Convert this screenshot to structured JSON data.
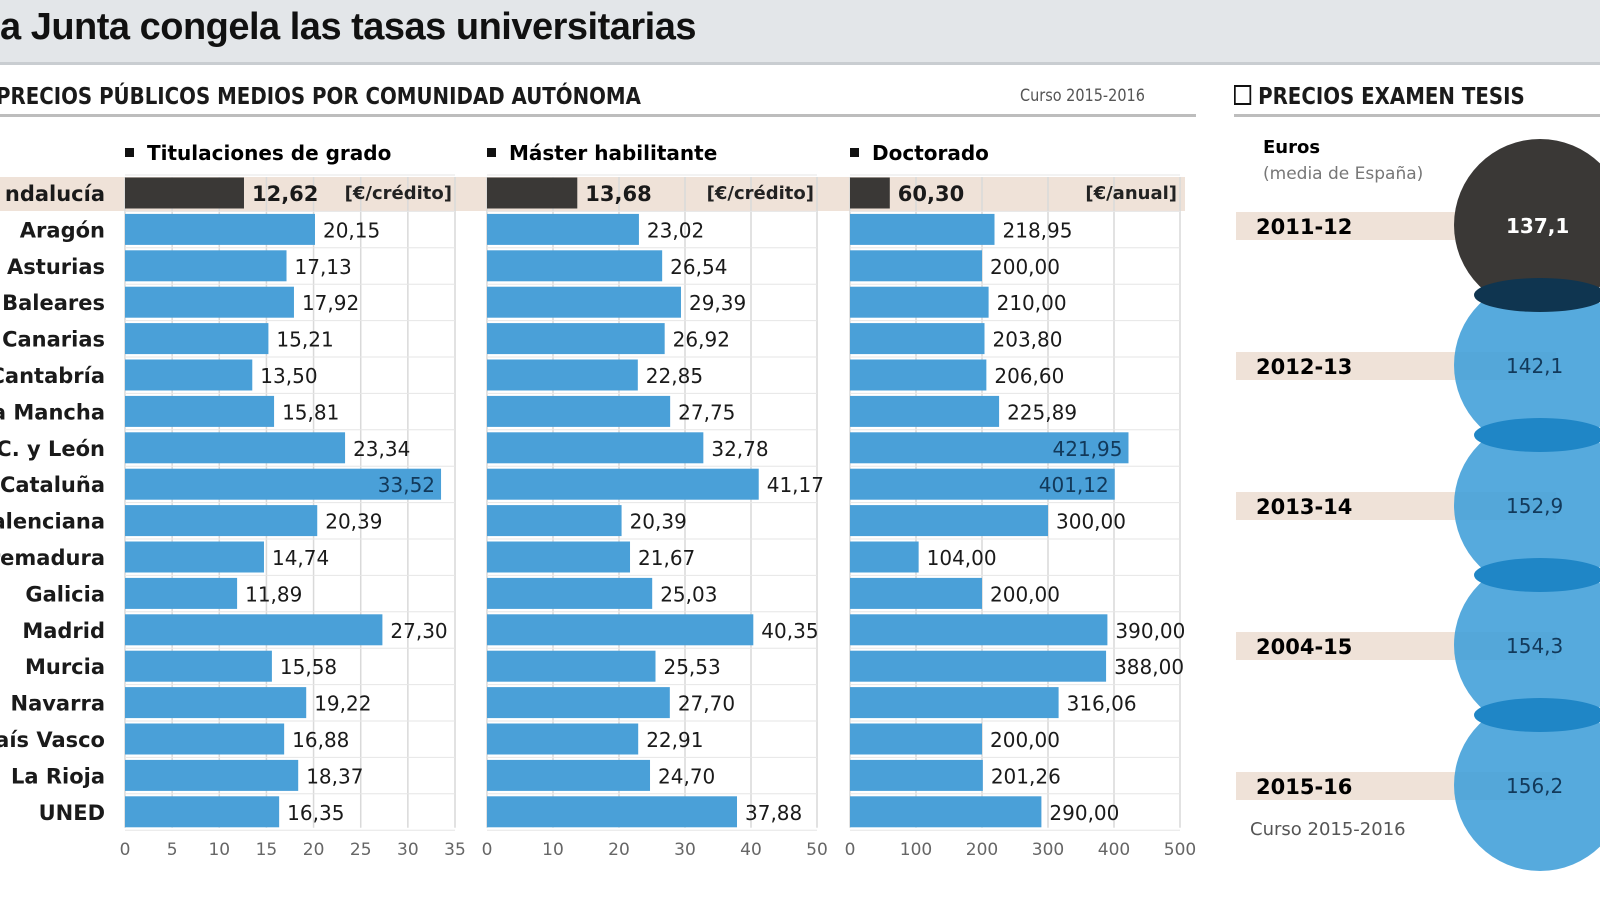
{
  "header": {
    "title": "a Junta congela las tasas universitarias"
  },
  "left_section": {
    "title": "PRECIOS PÚBLICOS MEDIOS POR COMUNIDAD AUTÓNOMA",
    "course": "Curso 2015-2016"
  },
  "right_section": {
    "title": "PRECIOS EXAMEN TESIS"
  },
  "colors": {
    "bar": "#4aa0d8",
    "highlight_bar": "#3a3836",
    "highlight_row": "#efe2d8",
    "circle": "#3f9ed8",
    "circle_dark": "#3a3836"
  },
  "chart_data": [
    {
      "type": "bar",
      "orientation": "horizontal",
      "title": "Titulaciones de grado",
      "unit": "[€/crédito]",
      "categories": [
        "ndalucía",
        "Aragón",
        "Asturias",
        "Baleares",
        "Canarias",
        "Cantabría",
        "a Mancha",
        "C. y León",
        "Cataluña",
        "alenciana",
        "remadura",
        "Galicia",
        "Madrid",
        "Murcia",
        "Navarra",
        "País Vasco",
        "La Rioja",
        "UNED"
      ],
      "values": [
        12.62,
        20.15,
        17.13,
        17.92,
        15.21,
        13.5,
        15.81,
        23.34,
        33.52,
        20.39,
        14.74,
        11.89,
        27.3,
        15.58,
        19.22,
        16.88,
        18.37,
        16.35
      ],
      "labels": [
        "12,62",
        "20,15",
        "17,13",
        "17,92",
        "15,21",
        "13,50",
        "15,81",
        "23,34",
        "33,52",
        "20,39",
        "14,74",
        "11,89",
        "27,30",
        "15,58",
        "19,22",
        "16,88",
        "18,37",
        "16,35"
      ],
      "highlight": "ndalucía",
      "xlim": [
        0,
        35
      ],
      "xticks": [
        "0",
        "5",
        "10",
        "15",
        "20",
        "25",
        "30",
        "35"
      ],
      "grid": true
    },
    {
      "type": "bar",
      "orientation": "horizontal",
      "title": "Máster habilitante",
      "unit": "[€/crédito]",
      "values": [
        13.68,
        23.02,
        26.54,
        29.39,
        26.92,
        22.85,
        27.75,
        32.78,
        41.17,
        20.39,
        21.67,
        25.03,
        40.35,
        25.53,
        27.7,
        22.91,
        24.7,
        37.88
      ],
      "labels": [
        "13,68",
        "23,02",
        "26,54",
        "29,39",
        "26,92",
        "22,85",
        "27,75",
        "32,78",
        "41,17",
        "20,39",
        "21,67",
        "25,03",
        "40,35",
        "25,53",
        "27,70",
        "22,91",
        "24,70",
        "37,88"
      ],
      "xlim": [
        0,
        50
      ],
      "xticks": [
        "0",
        "10",
        "20",
        "30",
        "40",
        "50"
      ],
      "grid": true
    },
    {
      "type": "bar",
      "orientation": "horizontal",
      "title": "Doctorado",
      "unit": "[€/anual]",
      "values": [
        60.3,
        218.95,
        200.0,
        210.0,
        203.8,
        206.6,
        225.89,
        421.95,
        401.12,
        300.0,
        104.0,
        200.0,
        390.0,
        388.0,
        316.06,
        200.0,
        201.26,
        290.0
      ],
      "labels": [
        "60,30",
        "218,95",
        "200,00",
        "210,00",
        "203,80",
        "206,60",
        "225,89",
        "421,95",
        "401,12",
        "300,00",
        "104,00",
        "200,00",
        "390,00",
        "388,00",
        "316,06",
        "200,00",
        "201,26",
        "290,00"
      ],
      "xlim": [
        0,
        500
      ],
      "xticks": [
        "0",
        "100",
        "200",
        "300",
        "400",
        "500"
      ],
      "grid": true
    },
    {
      "type": "bubble",
      "title": "Euros",
      "subtitle": "(media de España)",
      "categories": [
        "2011-12",
        "2012-13",
        "2013-14",
        "2004-15",
        "2015-16"
      ],
      "values": [
        137.1,
        142.1,
        152.9,
        154.3,
        156.2
      ],
      "labels": [
        "137,1",
        "142,1",
        "152,9",
        "154,3",
        "156,2"
      ],
      "highlight": "2011-12",
      "note": "Curso 2015-2016"
    }
  ]
}
